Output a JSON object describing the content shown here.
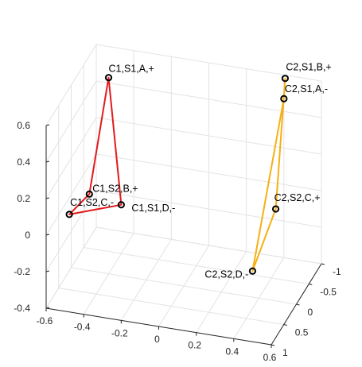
{
  "chart_data": {
    "type": "scatter3d-polygons",
    "title": "",
    "xlabel": "",
    "ylabel": "",
    "zlabel": "",
    "xlim": [
      -0.6,
      0.6
    ],
    "ylim": [
      -1,
      1
    ],
    "zlim": [
      -0.4,
      0.6
    ],
    "xticks": [
      "-0.6",
      "-0.4",
      "-0.2",
      "0",
      "0.2",
      "0.4",
      "0.6"
    ],
    "yticks": [
      "-1",
      "-0.5",
      "0",
      "0.5",
      "1"
    ],
    "zticks": [
      "-0.4",
      "-0.2",
      "0",
      "0.2",
      "0.4",
      "0.6"
    ],
    "grid": true,
    "series": [
      {
        "color": "#e31a1c",
        "points": [
          {
            "label": "C1,S1,A,+",
            "x": -0.43,
            "y": -0.22,
            "z": 0.62
          },
          {
            "label": "C1,S1,D,-",
            "x": -0.3,
            "y": 0.25,
            "z": 0.05
          },
          {
            "label": "C1,S2,C,-",
            "x": -0.55,
            "y": 0.45,
            "z": 0.0
          },
          {
            "label": "C1,S2,B,+",
            "x": -0.47,
            "y": 0.25,
            "z": 0.08
          }
        ]
      },
      {
        "color": "#f5b015",
        "points": [
          {
            "label": "C2,S1,B,+",
            "x": 0.4,
            "y": -1.05,
            "z": 0.57
          },
          {
            "label": "C2,S2,C,+",
            "x": 0.45,
            "y": -0.3,
            "z": 0.03
          },
          {
            "label": "C2,S2,D,-",
            "x": 0.48,
            "y": 0.85,
            "z": -0.05
          },
          {
            "label": "C2,S1,A,-",
            "x": 0.4,
            "y": -1.0,
            "z": 0.47
          }
        ]
      }
    ]
  }
}
